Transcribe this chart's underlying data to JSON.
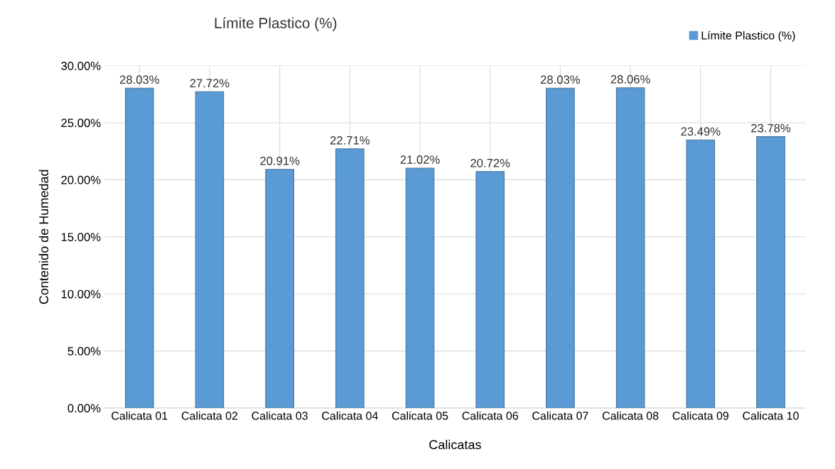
{
  "chart_data": {
    "type": "bar",
    "title": "Límite Plastico (%)",
    "xlabel": "Calicatas",
    "ylabel": "Contenido de Humedad",
    "categories": [
      "Calicata 01",
      "Calicata 02",
      "Calicata 03",
      "Calicata 04",
      "Calicata 05",
      "Calicata 06",
      "Calicata 07",
      "Calicata 08",
      "Calicata 09",
      "Calicata 10"
    ],
    "series": [
      {
        "name": "Límite Plastico (%)",
        "color": "#5b9bd5",
        "values": [
          28.03,
          27.72,
          20.91,
          22.71,
          21.02,
          20.72,
          28.03,
          28.06,
          23.49,
          23.78
        ],
        "value_labels": [
          "28.03%",
          "27.72%",
          "20.91%",
          "22.71%",
          "21.02%",
          "20.72%",
          "28.03%",
          "28.06%",
          "23.49%",
          "23.78%"
        ]
      }
    ],
    "ylim": [
      0,
      30
    ],
    "yticks": [
      {
        "value": 0,
        "label": "0.00%"
      },
      {
        "value": 5,
        "label": "5.00%"
      },
      {
        "value": 10,
        "label": "10.00%"
      },
      {
        "value": 15,
        "label": "15.00%"
      },
      {
        "value": 20,
        "label": "20.00%"
      },
      {
        "value": 25,
        "label": "25.00%"
      },
      {
        "value": 30,
        "label": "30.00%"
      }
    ],
    "grid": true,
    "legend": "top right"
  }
}
